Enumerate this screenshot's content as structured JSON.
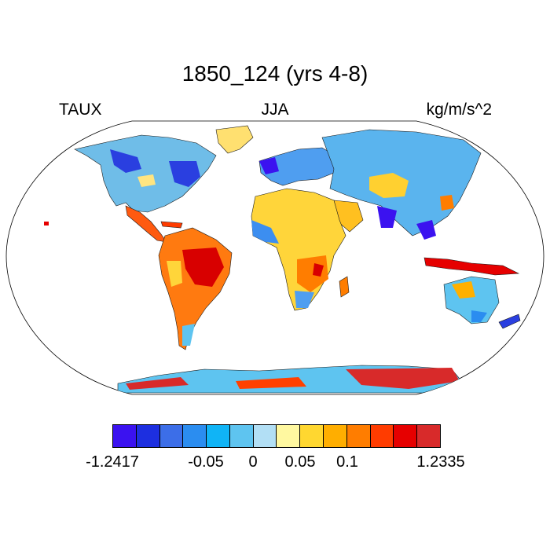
{
  "title": "1850_124 (yrs 4-8)",
  "variable_label": "TAUX",
  "season_label": "JJA",
  "units_label": "kg/m/s^2",
  "colorbar": {
    "colors": [
      "#3b12f0",
      "#1d2fe0",
      "#3c6ee8",
      "#2b8df0",
      "#10b4f6",
      "#5ec4f0",
      "#b2dff5",
      "#fff8a0",
      "#ffd730",
      "#ffae00",
      "#ff7d00",
      "#ff3c00",
      "#e60000",
      "#d82a2a"
    ],
    "tick_labels": [
      "-1.2417",
      "-0.05",
      "0",
      "0.05",
      "0.1",
      "1.2335"
    ]
  }
}
